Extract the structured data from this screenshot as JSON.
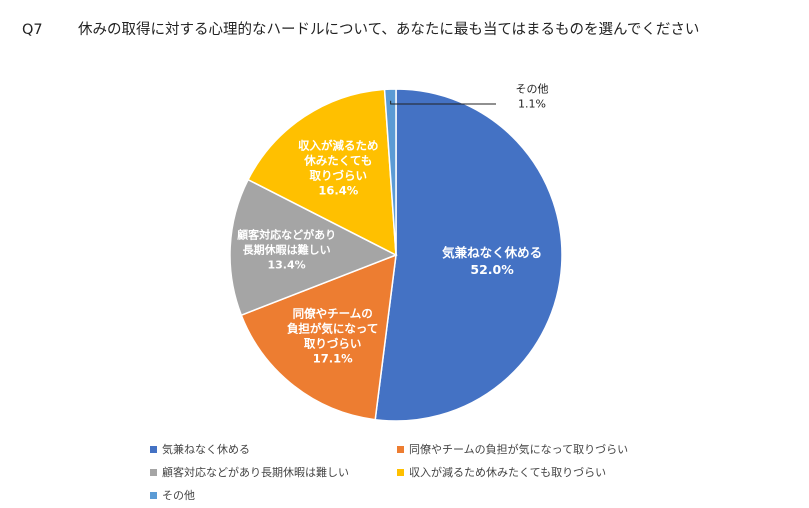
{
  "title": {
    "number": "Q7",
    "question": "休みの取得に対する心理的なハードルについて、あなたに最も当てはまるものを選んでください"
  },
  "chart_data": {
    "type": "pie",
    "start_angle_deg": 0,
    "direction": "clockwise",
    "slices": [
      {
        "name": "気兼ねなく休める",
        "value": 52.0,
        "label_lines": [
          "気兼ねなく休める",
          "52.0%"
        ],
        "color": "#4472C4"
      },
      {
        "name": "同僚やチームの負担が気になって取りづらい",
        "value": 17.1,
        "label_lines": [
          "同僚やチームの",
          "負担が気になって",
          "取りづらい",
          "17.1%"
        ],
        "color": "#ED7D31"
      },
      {
        "name": "顧客対応などがあり長期休暇は難しい",
        "value": 13.4,
        "label_lines": [
          "顧客対応などがあり",
          "長期休暇は難しい",
          "13.4%"
        ],
        "color": "#A5A5A5"
      },
      {
        "name": "収入が減るため休みたくても取りづらい",
        "value": 16.4,
        "label_lines": [
          "収入が減るため",
          "休みたくても",
          "取りづらい",
          "16.4%"
        ],
        "color": "#FFC000"
      },
      {
        "name": "その他",
        "value": 1.1,
        "label_lines": [
          "その他",
          "1.1%"
        ],
        "color": "#5B9BD5"
      }
    ],
    "legend": [
      "気兼ねなく休める",
      "同僚やチームの負担が気になって取りづらい",
      "顧客対応などがあり長期休暇は難しい",
      "収入が減るため休みたくても取りづらい",
      "その他"
    ]
  }
}
